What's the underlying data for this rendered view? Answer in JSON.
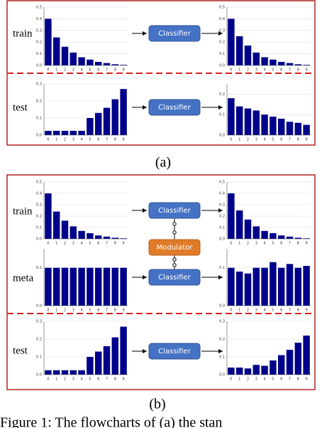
{
  "panel_a": {
    "label": "(a)",
    "rows": [
      {
        "label": "train",
        "classifier": "Classifier"
      },
      {
        "label": "test",
        "classifier": "Classifier"
      }
    ]
  },
  "panel_b": {
    "label": "(b)",
    "rows": [
      {
        "label": "train",
        "classifier": "Classifier"
      },
      {
        "label": "meta",
        "classifier": "Classifier"
      },
      {
        "label": "test",
        "classifier": "Classifier"
      }
    ],
    "modulator": "Modulator"
  },
  "caption": "Figure 1: The flowcharts of (a) the stan",
  "chart_data": [
    {
      "type": "bar",
      "categories": [
        "0",
        "1",
        "2",
        "3",
        "4",
        "5",
        "6",
        "7",
        "8",
        "9"
      ],
      "values": [
        0.4,
        0.24,
        0.16,
        0.11,
        0.07,
        0.05,
        0.03,
        0.02,
        0.01,
        0.005
      ],
      "color": "#00008b",
      "ylim": [
        0,
        0.5
      ],
      "yticks": [
        {
          "value": 0,
          "label": "0.0"
        },
        0.1,
        0.2,
        0.3,
        0.4,
        0.5
      ]
    },
    {
      "type": "bar",
      "categories": [
        "0",
        "1",
        "2",
        "3",
        "4",
        "5",
        "6",
        "7",
        "8",
        "9"
      ],
      "values": [
        0.4,
        0.25,
        0.17,
        0.11,
        0.07,
        0.05,
        0.03,
        0.02,
        0.01,
        0.005
      ],
      "color": "#00008b",
      "ylim": [
        0,
        0.5
      ],
      "yticks": [
        {
          "value": 0,
          "label": "0.0"
        },
        0.1,
        0.2,
        0.3,
        0.4,
        0.5
      ]
    },
    {
      "type": "bar",
      "categories": [
        "0",
        "1",
        "2",
        "3",
        "4",
        "5",
        "6",
        "7",
        "8",
        "9"
      ],
      "values": [
        0.025,
        0.025,
        0.025,
        0.025,
        0.025,
        0.1,
        0.13,
        0.16,
        0.21,
        0.27
      ],
      "color": "#00008b",
      "ylim": [
        0,
        0.3
      ],
      "yticks": [
        {
          "value": 0,
          "label": "0.0"
        },
        0.1,
        0.2,
        0.3
      ]
    },
    {
      "type": "bar",
      "categories": [
        "0",
        "1",
        "2",
        "3",
        "4",
        "5",
        "6",
        "7",
        "8",
        "9"
      ],
      "values": [
        0.18,
        0.14,
        0.13,
        0.12,
        0.1,
        0.09,
        0.08,
        0.065,
        0.06,
        0.05
      ],
      "color": "#00008b",
      "ylim": [
        0,
        0.25
      ],
      "yticks": [
        {
          "value": 0,
          "label": "0.0"
        },
        0.1,
        0.2
      ]
    },
    {
      "type": "bar",
      "categories": [
        "0",
        "1",
        "2",
        "3",
        "4",
        "5",
        "6",
        "7",
        "8",
        "9"
      ],
      "values": [
        0.4,
        0.24,
        0.16,
        0.11,
        0.07,
        0.05,
        0.03,
        0.02,
        0.01,
        0.005
      ],
      "color": "#00008b",
      "ylim": [
        0,
        0.5
      ],
      "yticks": [
        {
          "value": 0,
          "label": "0.0"
        },
        0.1,
        0.2,
        0.3,
        0.4,
        0.5
      ]
    },
    {
      "type": "bar",
      "categories": [
        "0",
        "1",
        "2",
        "3",
        "4",
        "5",
        "6",
        "7",
        "8",
        "9"
      ],
      "values": [
        0.4,
        0.25,
        0.17,
        0.11,
        0.07,
        0.05,
        0.03,
        0.02,
        0.01,
        0.005
      ],
      "color": "#00008b",
      "ylim": [
        0,
        0.5
      ],
      "yticks": [
        {
          "value": 0,
          "label": "0.0"
        },
        0.1,
        0.2,
        0.3,
        0.4,
        0.5
      ]
    },
    {
      "type": "bar",
      "categories": [
        "0",
        "1",
        "2",
        "3",
        "4",
        "5",
        "6",
        "7",
        "8",
        "9"
      ],
      "values": [
        0.1,
        0.1,
        0.1,
        0.1,
        0.1,
        0.1,
        0.1,
        0.1,
        0.1,
        0.1
      ],
      "color": "#00008b",
      "ylim": [
        0,
        0.15
      ],
      "yticks": [
        {
          "value": 0,
          "label": "0.0"
        },
        0.1
      ]
    },
    {
      "type": "bar",
      "categories": [
        "0",
        "1",
        "2",
        "3",
        "4",
        "5",
        "6",
        "7",
        "8",
        "9"
      ],
      "values": [
        0.1,
        0.09,
        0.085,
        0.1,
        0.1,
        0.115,
        0.1,
        0.11,
        0.1,
        0.105
      ],
      "color": "#00008b",
      "ylim": [
        0,
        0.15
      ],
      "yticks": [
        {
          "value": 0,
          "label": "0.0"
        },
        0.1
      ]
    },
    {
      "type": "bar",
      "categories": [
        "0",
        "1",
        "2",
        "3",
        "4",
        "5",
        "6",
        "7",
        "8",
        "9"
      ],
      "values": [
        0.025,
        0.025,
        0.025,
        0.025,
        0.025,
        0.1,
        0.13,
        0.16,
        0.21,
        0.27
      ],
      "color": "#00008b",
      "ylim": [
        0,
        0.3
      ],
      "yticks": [
        {
          "value": 0,
          "label": "0.0"
        },
        0.1,
        0.2,
        0.3
      ]
    },
    {
      "type": "bar",
      "categories": [
        "0",
        "1",
        "2",
        "3",
        "4",
        "5",
        "6",
        "7",
        "8",
        "9"
      ],
      "values": [
        0.04,
        0.04,
        0.035,
        0.055,
        0.05,
        0.08,
        0.11,
        0.14,
        0.18,
        0.22
      ],
      "color": "#00008b",
      "ylim": [
        0,
        0.3
      ],
      "yticks": [
        {
          "value": 0,
          "label": "0.0"
        },
        0.1,
        0.2,
        0.3
      ]
    }
  ]
}
